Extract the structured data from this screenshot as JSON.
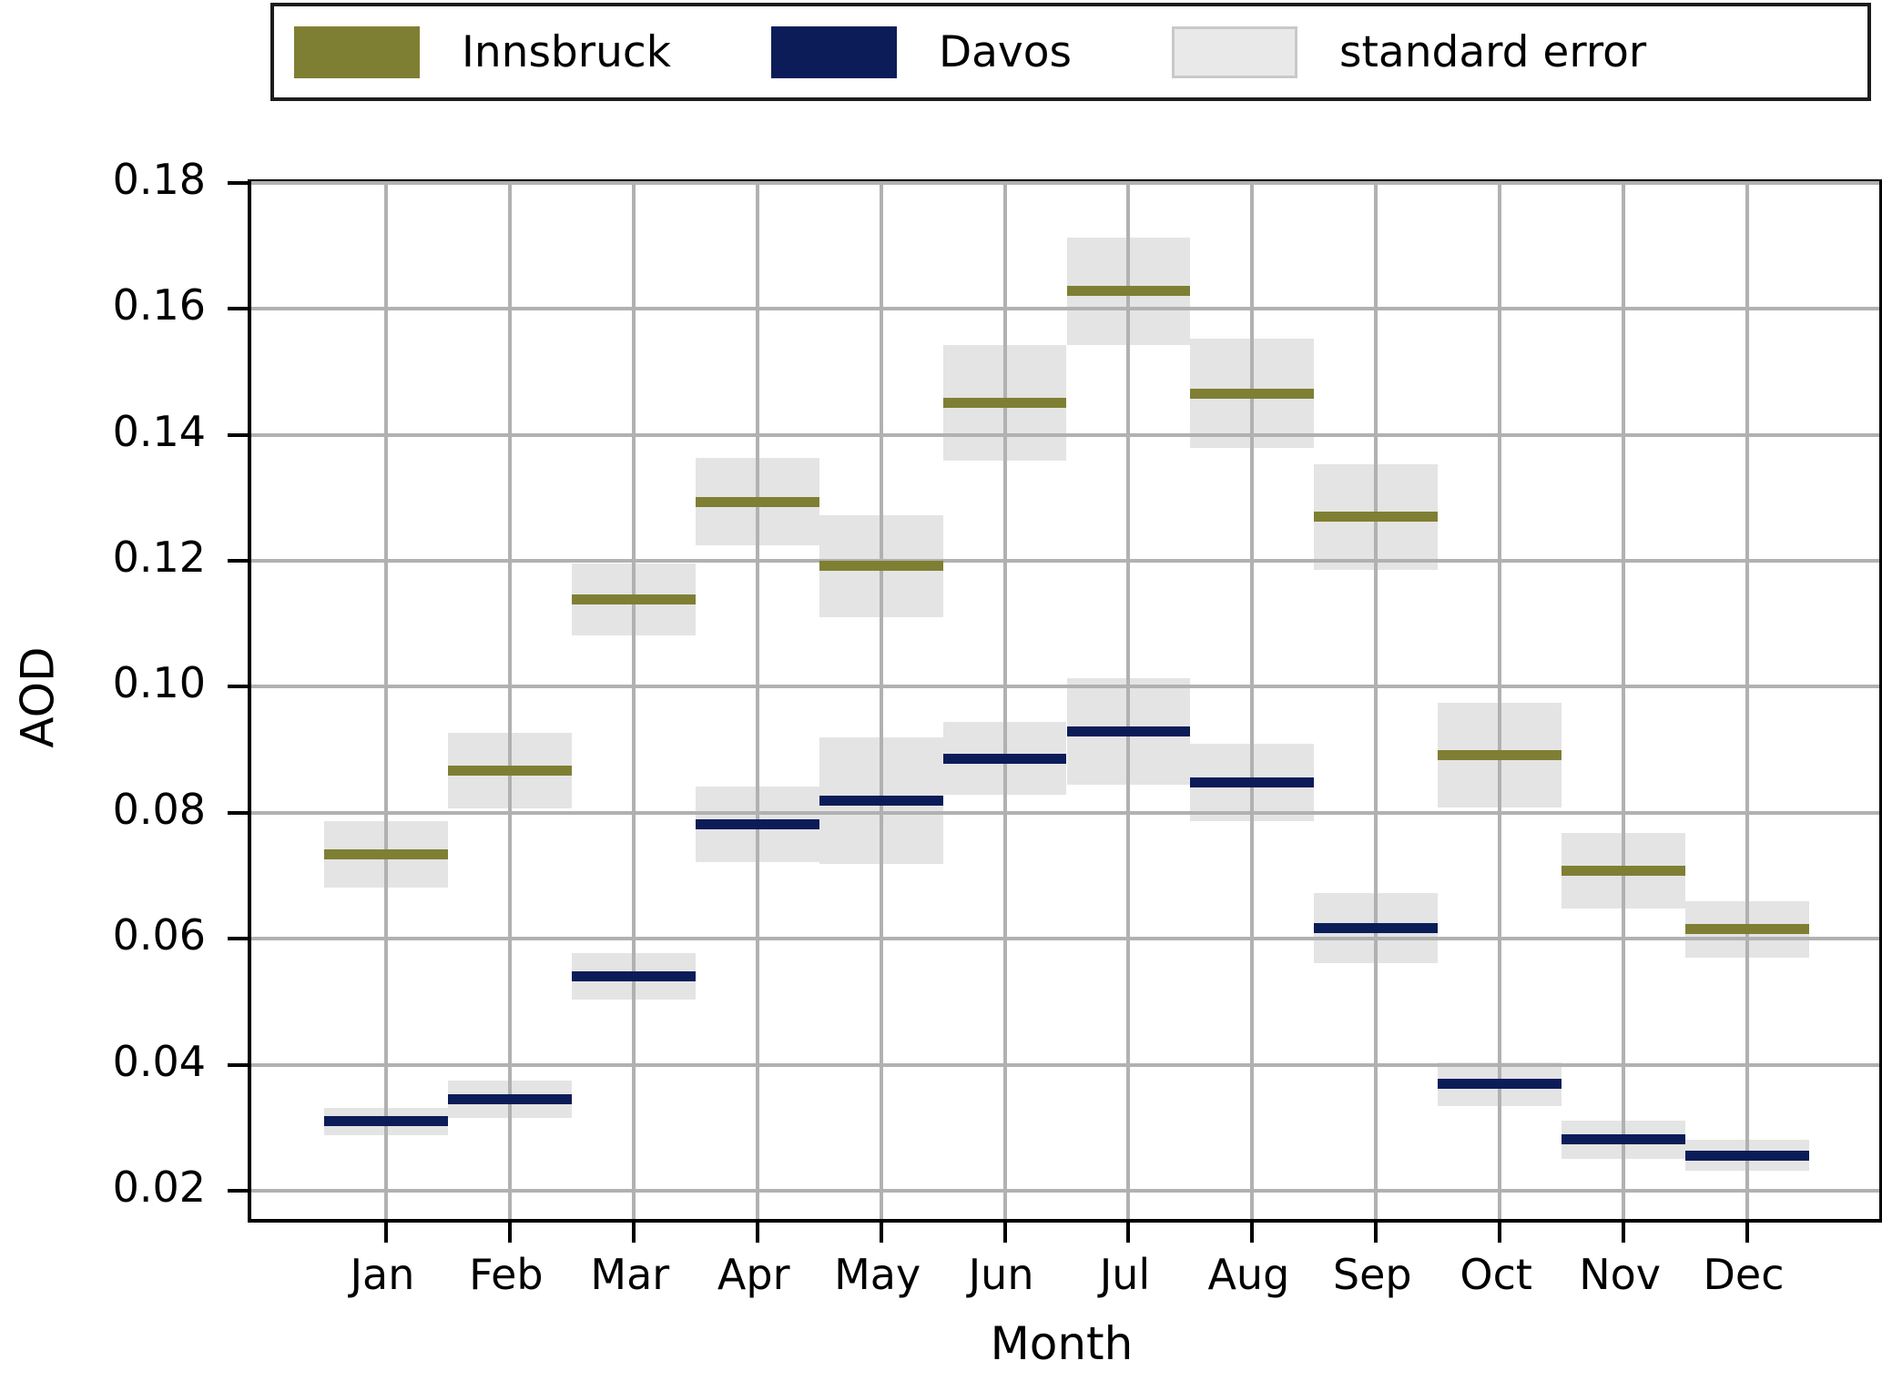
{
  "legend": {
    "items": [
      {
        "label": "Innsbruck",
        "color": "#7f7f33",
        "style": "solid"
      },
      {
        "label": "Davos",
        "color": "#0b1c58",
        "style": "solid"
      },
      {
        "label": "standard error",
        "color": "#e9e9e9",
        "style": "bordered",
        "border_color": "#c9c9c9"
      }
    ]
  },
  "axes": {
    "ylabel": "AOD",
    "xlabel": "Month",
    "y_tick_labels": [
      "0.18",
      "0.16",
      "0.14",
      "0.12",
      "0.10",
      "0.08",
      "0.06",
      "0.04",
      "0.02"
    ],
    "x_tick_labels": [
      "Jan",
      "Feb",
      "Mar",
      "Apr",
      "May",
      "Jun",
      "Jul",
      "Aug",
      "Sep",
      "Oct",
      "Nov",
      "Dec"
    ]
  },
  "chart_data": {
    "type": "line",
    "style": "flat horizontal segment per month (monthly mean) with shaded standard-error band",
    "title": "",
    "xlabel": "Month",
    "ylabel": "AOD",
    "categories": [
      "Jan",
      "Feb",
      "Mar",
      "Apr",
      "May",
      "Jun",
      "Jul",
      "Aug",
      "Sep",
      "Oct",
      "Nov",
      "Dec"
    ],
    "ylim": [
      0.0155,
      0.18
    ],
    "yticks": [
      0.02,
      0.04,
      0.06,
      0.08,
      0.1,
      0.12,
      0.14,
      0.16,
      0.18
    ],
    "grid": true,
    "legend_position": "top",
    "band_color": "#e4e4e4",
    "series": [
      {
        "name": "Innsbruck",
        "color": "#7f7f33",
        "values": [
          0.0734,
          0.0867,
          0.1139,
          0.1294,
          0.1192,
          0.1451,
          0.1628,
          0.1466,
          0.127,
          0.0892,
          0.0708,
          0.0615
        ],
        "stderr": [
          0.0053,
          0.006,
          0.0057,
          0.0069,
          0.0081,
          0.0092,
          0.0085,
          0.0087,
          0.0084,
          0.0083,
          0.006,
          0.0045
        ]
      },
      {
        "name": "Davos",
        "color": "#0b1c58",
        "values": [
          0.031,
          0.0345,
          0.054,
          0.0782,
          0.0819,
          0.0886,
          0.0929,
          0.0848,
          0.0617,
          0.0369,
          0.0281,
          0.0256
        ],
        "stderr": [
          0.0022,
          0.0029,
          0.0037,
          0.006,
          0.01,
          0.0058,
          0.0084,
          0.0061,
          0.0056,
          0.0035,
          0.003,
          0.0025
        ]
      }
    ]
  }
}
